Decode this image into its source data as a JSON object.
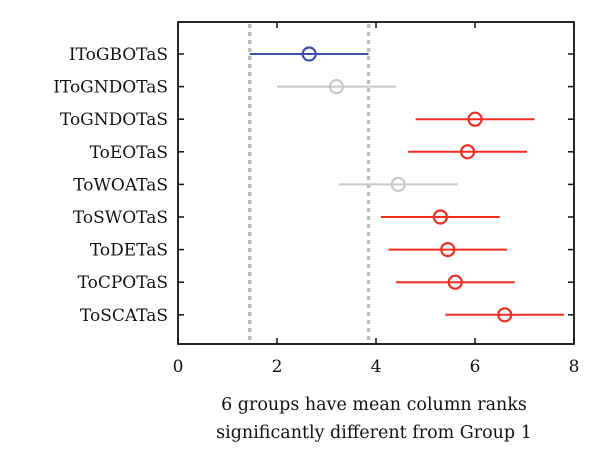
{
  "chart_data": {
    "type": "scatter",
    "title": "",
    "xlabel_lines": [
      "6 groups have mean column ranks",
      "significantly different from Group 1"
    ],
    "ylabel": "",
    "xlim": [
      0,
      8
    ],
    "x_ticks": [
      "0",
      "2",
      "4",
      "6",
      "8"
    ],
    "grid": false,
    "categories": [
      "IToGBOTaS",
      "IToGNDOTaS",
      "ToGNDOTaS",
      "ToEOTaS",
      "ToWOATaS",
      "ToSWOTaS",
      "ToDETaS",
      "ToCPOTaS",
      "ToSCATaS"
    ],
    "means": [
      2.65,
      3.2,
      6.0,
      5.85,
      4.45,
      5.3,
      5.45,
      5.6,
      6.6
    ],
    "lower": [
      1.45,
      2.0,
      4.8,
      4.65,
      3.25,
      4.1,
      4.25,
      4.4,
      5.4
    ],
    "upper": [
      3.85,
      4.4,
      7.2,
      7.05,
      5.65,
      6.5,
      6.65,
      6.8,
      7.8
    ],
    "groups": [
      "selected",
      "neutral",
      "significant",
      "significant",
      "neutral",
      "significant",
      "significant",
      "significant",
      "significant"
    ],
    "reference_lines_x": [
      1.45,
      3.85
    ],
    "colors": {
      "selected": "#3f4fb0",
      "neutral": "#c8c8c8",
      "significant": "#f02d1e",
      "reference": "#bdbdbd",
      "axis": "#111111"
    }
  }
}
